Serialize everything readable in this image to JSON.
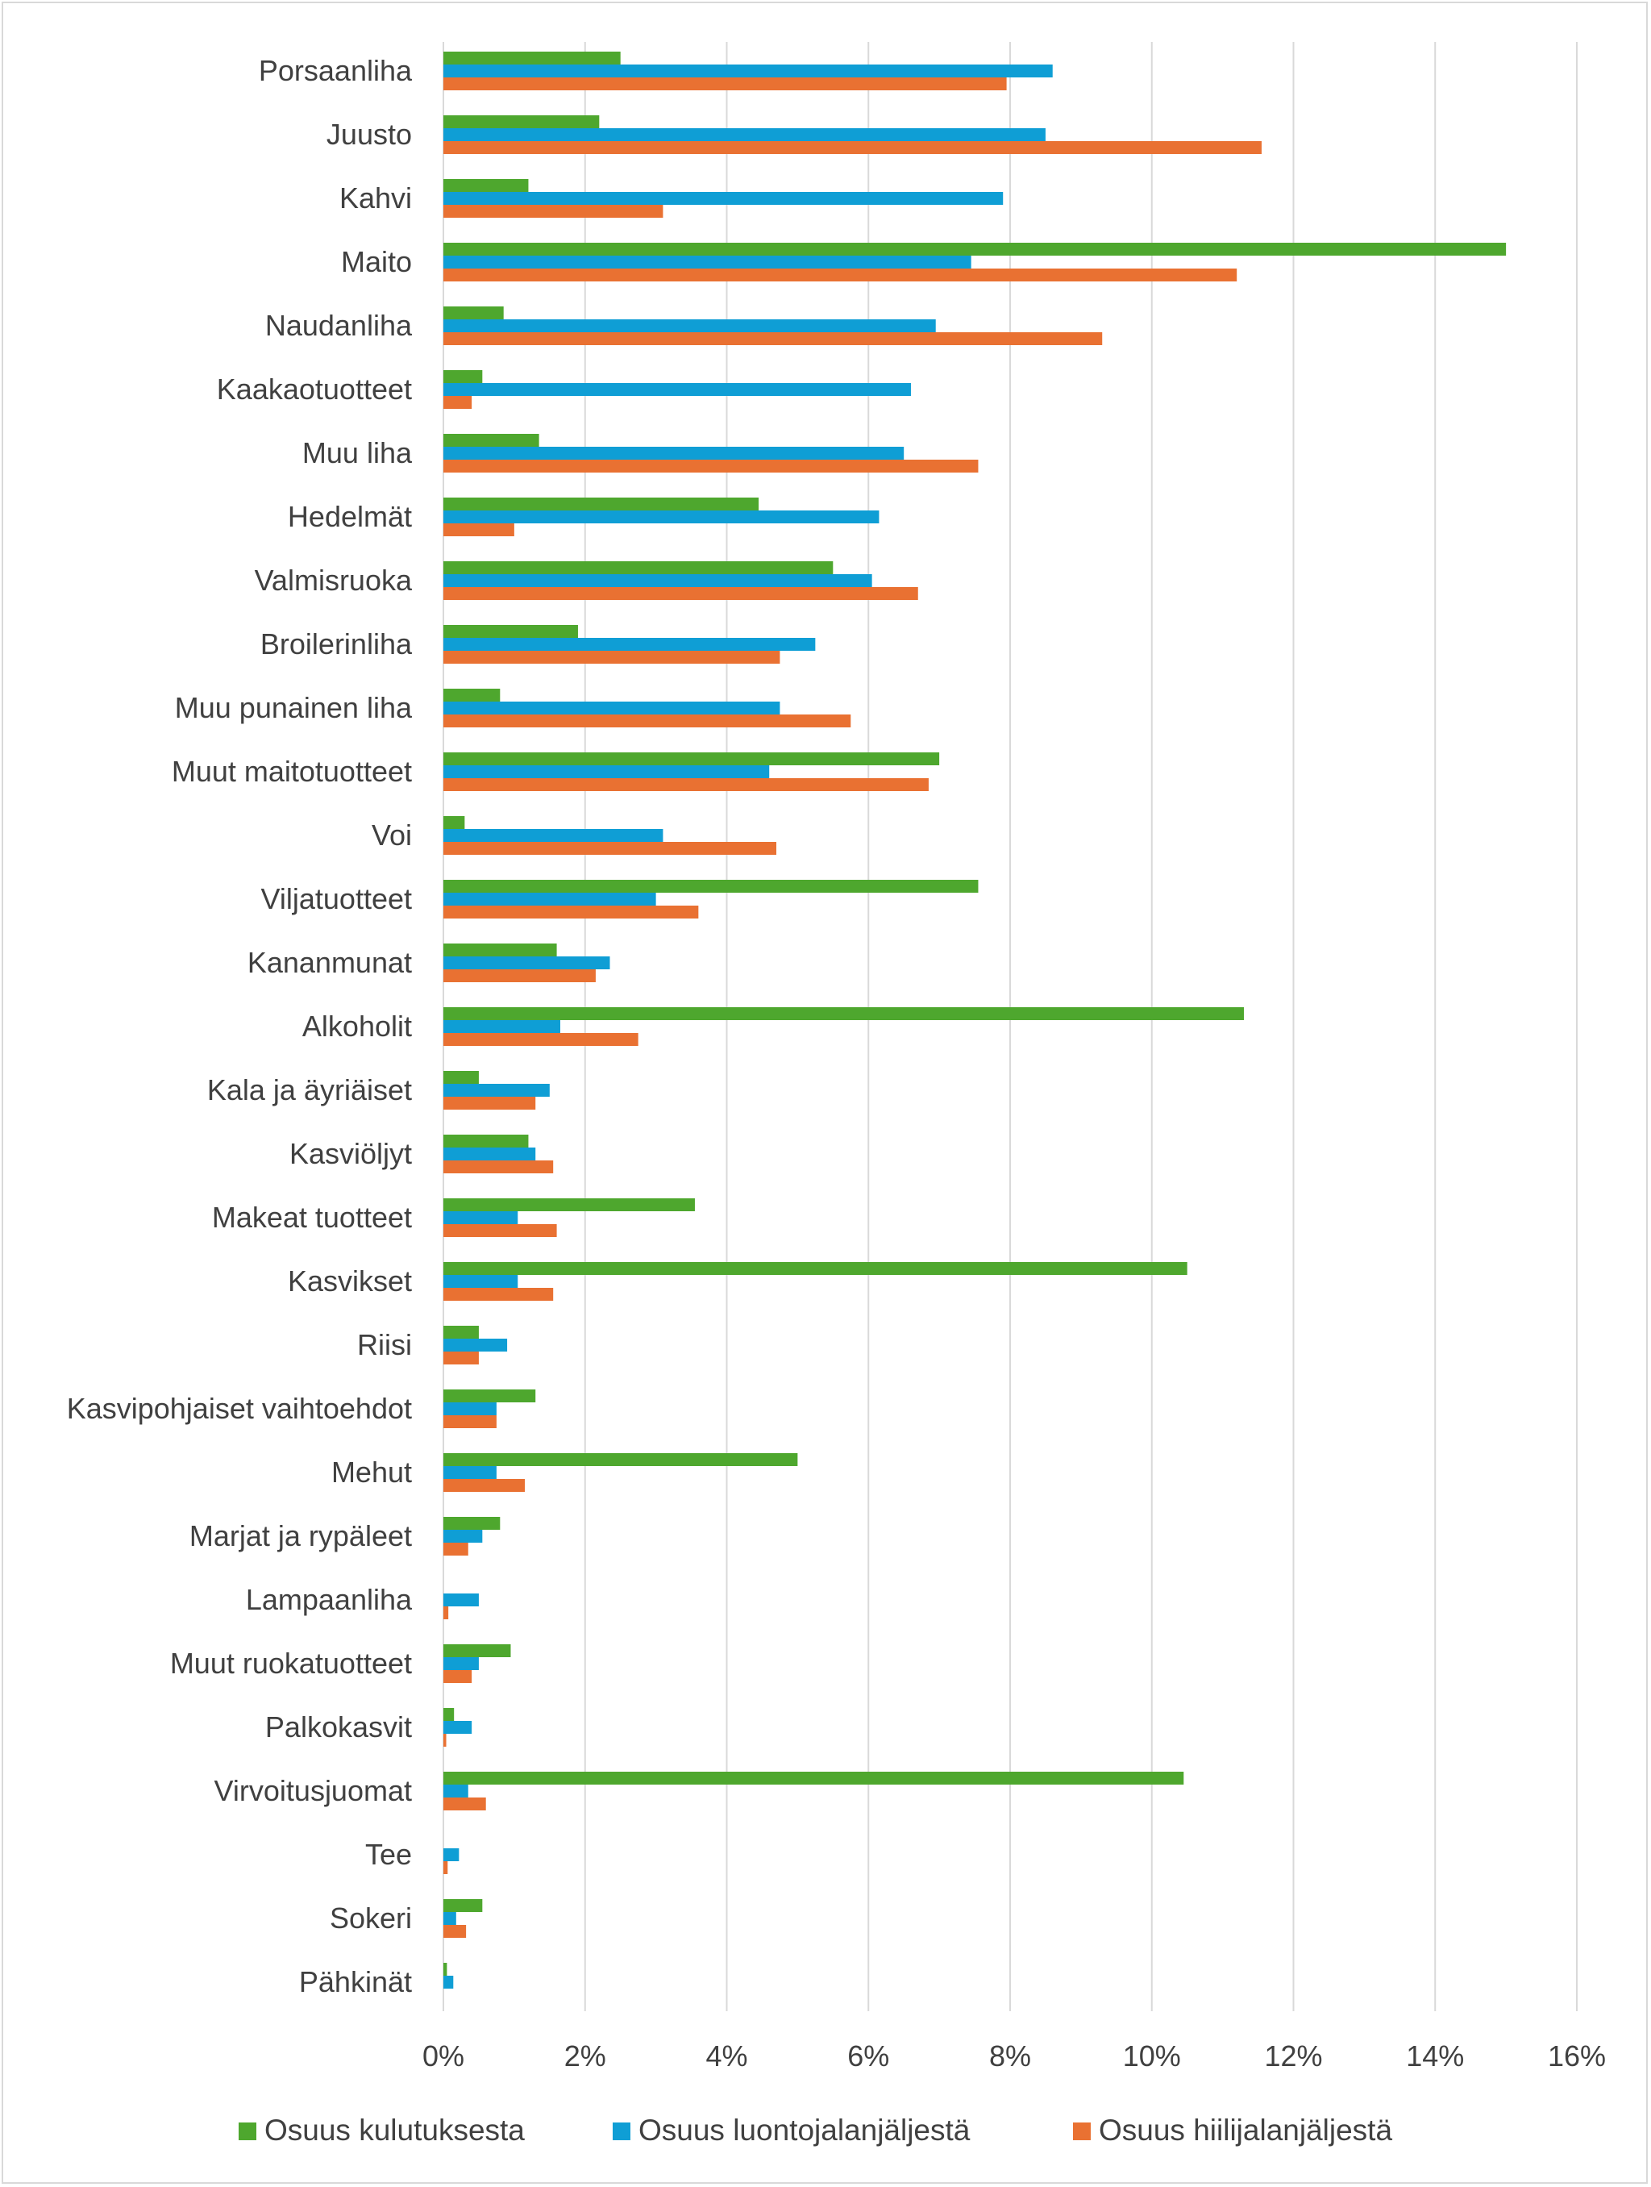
{
  "chart_data": {
    "type": "bar",
    "orientation": "horizontal",
    "title": "",
    "xlabel": "",
    "ylabel": "",
    "xlim": [
      0,
      16
    ],
    "x_ticks": [
      0,
      2,
      4,
      6,
      8,
      10,
      12,
      14,
      16
    ],
    "tick_format": "{v}%",
    "grid": "vertical",
    "legend_position": "bottom",
    "categories": [
      "Porsaanliha",
      "Juusto",
      "Kahvi",
      "Maito",
      "Naudanliha",
      "Kaakaotuotteet",
      "Muu liha",
      "Hedelmät",
      "Valmisruoka",
      "Broilerinliha",
      "Muu punainen liha",
      "Muut maitotuotteet",
      "Voi",
      "Viljatuotteet",
      "Kananmunat",
      "Alkoholit",
      "Kala ja äyriäiset",
      "Kasviöljyt",
      "Makeat tuotteet",
      "Kasvikset",
      "Riisi",
      "Kasvipohjaiset vaihtoehdot",
      "Mehut",
      "Marjat ja rypäleet",
      "Lampaanliha",
      "Muut ruokatuotteet",
      "Palkokasvit",
      "Virvoitusjuomat",
      "Tee",
      "Sokeri",
      "Pähkinät"
    ],
    "series": [
      {
        "name": "Osuus kulutuksesta",
        "color": "#4ea72e",
        "values": [
          2.5,
          2.2,
          1.2,
          15.0,
          0.85,
          0.55,
          1.35,
          4.45,
          5.5,
          1.9,
          0.8,
          7.0,
          0.3,
          7.55,
          1.6,
          11.3,
          0.5,
          1.2,
          3.55,
          10.5,
          0.5,
          1.3,
          5.0,
          0.8,
          0.0,
          0.95,
          0.15,
          10.45,
          0.0,
          0.55,
          0.05
        ]
      },
      {
        "name": "Osuus luontojalanjäljestä",
        "color": "#0f9ed5",
        "values": [
          8.6,
          8.5,
          7.9,
          7.45,
          6.95,
          6.6,
          6.5,
          6.15,
          6.05,
          5.25,
          4.75,
          4.6,
          3.1,
          3.0,
          2.35,
          1.65,
          1.5,
          1.3,
          1.05,
          1.05,
          0.9,
          0.75,
          0.75,
          0.55,
          0.5,
          0.5,
          0.4,
          0.35,
          0.22,
          0.18,
          0.14
        ]
      },
      {
        "name": "Osuus hiilijalanjäljestä",
        "color": "#e97132",
        "values": [
          7.95,
          11.55,
          3.1,
          11.2,
          9.3,
          0.4,
          7.55,
          1.0,
          6.7,
          4.75,
          5.75,
          6.85,
          4.7,
          3.6,
          2.15,
          2.75,
          1.3,
          1.55,
          1.6,
          1.55,
          0.5,
          0.75,
          1.15,
          0.35,
          0.07,
          0.4,
          0.04,
          0.6,
          0.06,
          0.32,
          0.0
        ]
      }
    ]
  }
}
